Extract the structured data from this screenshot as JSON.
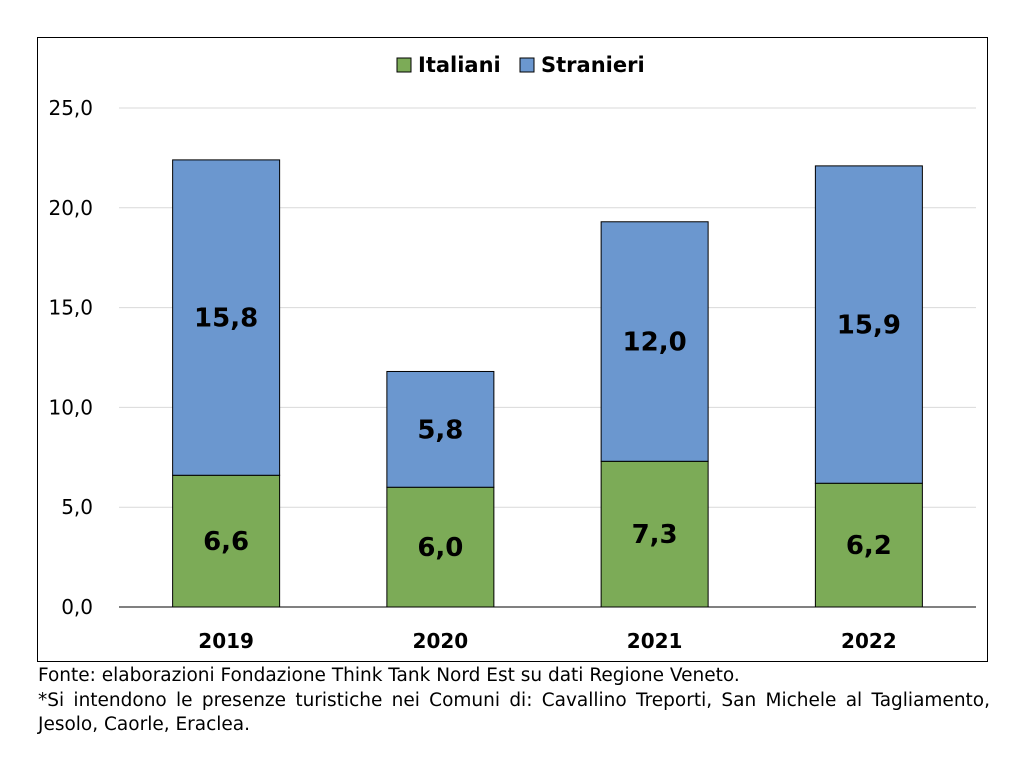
{
  "chart_data": {
    "type": "bar",
    "stacked": true,
    "categories": [
      "2019",
      "2020",
      "2021",
      "2022"
    ],
    "series": [
      {
        "name": "Italiani",
        "values": [
          6.6,
          6.0,
          7.3,
          6.2
        ],
        "labels": [
          "6,6",
          "6,0",
          "7,3",
          "6,2"
        ],
        "color": "#7cab57"
      },
      {
        "name": "Stranieri",
        "values": [
          15.8,
          5.8,
          12.0,
          15.9
        ],
        "labels": [
          "15,8",
          "5,8",
          "12,0",
          "15,9"
        ],
        "color": "#6b97cf"
      }
    ],
    "ylim": [
      0,
      25
    ],
    "yticks": [
      0,
      5,
      10,
      15,
      20,
      25
    ],
    "ytick_labels": [
      "0,0",
      "5,0",
      "10,0",
      "15,0",
      "20,0",
      "25,0"
    ],
    "legend_position": "top-center",
    "grid": true
  },
  "footnotes": {
    "source": "Fonte: elaborazioni Fondazione Think Tank Nord Est su dati Regione Veneto.",
    "detail": "*Si intendono le presenze turistiche nei Comuni di: Cavallino Treporti, San Michele al Tagliamento, Jesolo, Caorle, Eraclea."
  }
}
